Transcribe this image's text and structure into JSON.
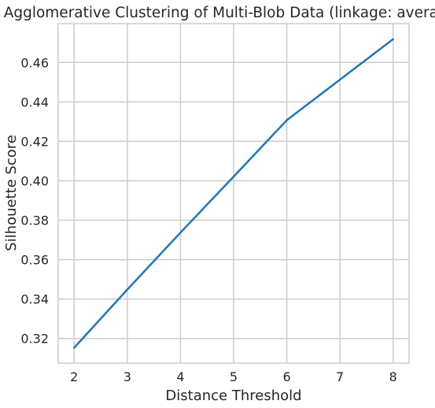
{
  "chart_data": {
    "type": "line",
    "title": "Agglomerative Clustering of Multi-Blob Data (linkage: average)",
    "xlabel": "Distance Threshold",
    "ylabel": "Silhouette Score",
    "x": [
      2,
      3,
      4,
      5,
      6,
      7,
      8
    ],
    "series": [
      {
        "values": [
          0.3153,
          0.3448,
          0.3737,
          0.4021,
          0.4307,
          0.4513,
          0.4718
        ],
        "color": "#1f77b4"
      }
    ],
    "xlim": [
      1.7,
      8.3
    ],
    "ylim": [
      0.3075,
      0.4797
    ],
    "xticks": [
      "2",
      "3",
      "4",
      "5",
      "6",
      "7",
      "8"
    ],
    "yticks": [
      "0.32",
      "0.34",
      "0.36",
      "0.38",
      "0.40",
      "0.42",
      "0.44",
      "0.46"
    ],
    "grid": true,
    "colors": {
      "grid": "#cccccc",
      "text": "#262626"
    }
  }
}
